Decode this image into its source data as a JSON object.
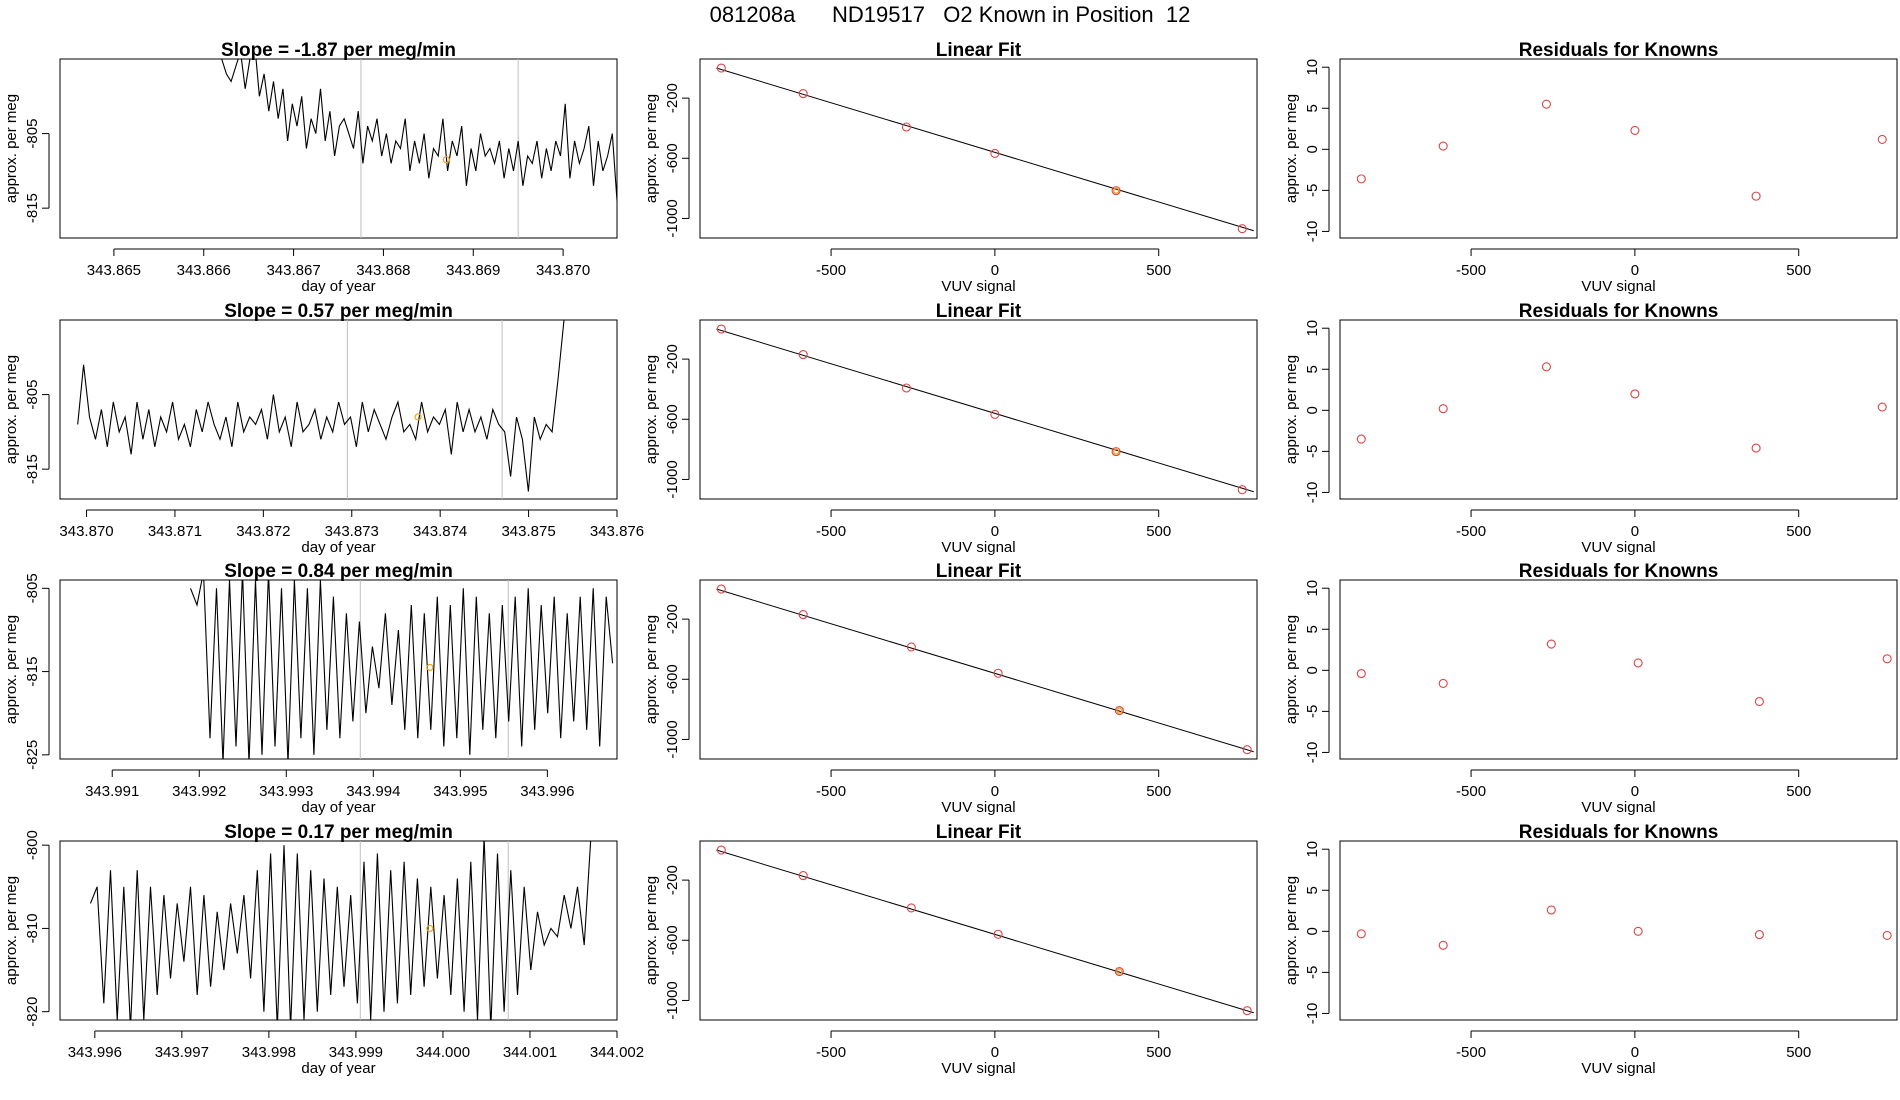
{
  "page_title": "081208a      ND19517   O2 Known in Position  12",
  "colors": {
    "trace": "#000000",
    "known_marker": "#f0a020",
    "fit_marker": "#dd4444",
    "grid_line": "#bfbfbf"
  },
  "chart_data": [
    {
      "type": "line",
      "title": "Slope =  -1.87  per meg/min",
      "xlabel": "day of year",
      "ylabel": "approx. per meg",
      "xlim": [
        343.8644,
        343.8706
      ],
      "ylim": [
        -819,
        -795
      ],
      "xticks": [
        "343.865",
        "343.866",
        "343.867",
        "343.868",
        "343.869",
        "343.870"
      ],
      "yticks": [
        "-805",
        "-815"
      ],
      "vlines": [
        343.86775,
        343.8695
      ],
      "marker": {
        "x": 343.8687,
        "y": -808.5
      },
      "series": [
        {
          "name": "trace",
          "x_start": 343.8662,
          "x_end": 343.8706,
          "values": [
            -795,
            -797,
            -798,
            -796,
            -794,
            -799,
            -795,
            -793,
            -800,
            -797,
            -802,
            -798,
            -803,
            -799,
            -806,
            -801,
            -804,
            -800,
            -807,
            -803,
            -805,
            -799,
            -806,
            -802,
            -808,
            -804,
            -803,
            -805,
            -807,
            -802,
            -809,
            -804,
            -806,
            -803,
            -808,
            -805,
            -809,
            -806,
            -807,
            -803,
            -810,
            -806,
            -809,
            -805,
            -811,
            -807,
            -808,
            -803,
            -810,
            -806,
            -808,
            -804,
            -812,
            -807,
            -810,
            -805,
            -808,
            -807,
            -809,
            -806,
            -811,
            -807,
            -810,
            -806,
            -812,
            -808,
            -809,
            -806,
            -811,
            -807,
            -810,
            -806,
            -808,
            -801,
            -811,
            -806,
            -809,
            -807,
            -804,
            -812,
            -806,
            -810,
            -808,
            -805,
            -814
          ]
        }
      ]
    },
    {
      "type": "line",
      "title": "Slope =  0.57  per meg/min",
      "xlabel": "day of year",
      "ylabel": "approx. per meg",
      "xlim": [
        343.8697,
        343.876
      ],
      "ylim": [
        -819,
        -795
      ],
      "xticks": [
        "343.870",
        "343.871",
        "343.872",
        "343.873",
        "343.874",
        "343.875",
        "343.876"
      ],
      "yticks": [
        "-805",
        "-815"
      ],
      "vlines": [
        343.87295,
        343.8747
      ],
      "marker": {
        "x": 343.87375,
        "y": -808
      },
      "series": [
        {
          "name": "trace",
          "x_start": 343.8699,
          "x_end": 343.8754,
          "values": [
            -809,
            -801,
            -808,
            -811,
            -807,
            -812,
            -806,
            -810,
            -808,
            -813,
            -806,
            -811,
            -807,
            -812,
            -808,
            -810,
            -806,
            -811,
            -809,
            -812,
            -807,
            -810,
            -806,
            -809,
            -811,
            -808,
            -812,
            -806,
            -810,
            -808,
            -809,
            -807,
            -811,
            -805,
            -810,
            -808,
            -812,
            -806,
            -810,
            -809,
            -807,
            -811,
            -808,
            -810,
            -806,
            -809,
            -808,
            -812,
            -806,
            -810,
            -807,
            -809,
            -811,
            -808,
            -806,
            -810,
            -809,
            -811,
            -806,
            -810,
            -808,
            -809,
            -807,
            -813,
            -806,
            -810,
            -807,
            -810,
            -808,
            -811,
            -807,
            -809,
            -810,
            -816,
            -808,
            -811,
            -818,
            -808,
            -811,
            -809,
            -810,
            -803,
            -795
          ]
        }
      ]
    },
    {
      "type": "line",
      "title": "Slope =  0.84  per meg/min",
      "xlabel": "day of year",
      "ylabel": "approx. per meg",
      "xlim": [
        343.9904,
        343.9968
      ],
      "ylim": [
        -825.5,
        -804
      ],
      "xticks": [
        "343.991",
        "343.992",
        "343.993",
        "343.994",
        "343.995",
        "343.996"
      ],
      "yticks": [
        "-805",
        "-815",
        "-825"
      ],
      "vlines": [
        343.99385,
        343.99555
      ],
      "marker": {
        "x": 343.99465,
        "y": -814.5
      },
      "series": [
        {
          "name": "trace",
          "x_start": 343.9919,
          "x_end": 343.99675,
          "values": [
            -805,
            -807,
            -803,
            -823,
            -805,
            -826,
            -804,
            -824,
            -803,
            -826,
            -804,
            -825,
            -803,
            -824,
            -805,
            -826,
            -804,
            -823,
            -805,
            -825,
            -804,
            -822,
            -806,
            -823,
            -808,
            -821,
            -809,
            -820,
            -812,
            -817,
            -808,
            -819,
            -810,
            -822,
            -807,
            -823,
            -808,
            -822,
            -806,
            -824,
            -807,
            -823,
            -805,
            -825,
            -806,
            -822,
            -808,
            -823,
            -807,
            -821,
            -806,
            -824,
            -805,
            -822,
            -807,
            -820,
            -806,
            -823,
            -808,
            -821,
            -806,
            -822,
            -805,
            -824,
            -806,
            -814
          ]
        }
      ]
    },
    {
      "type": "line",
      "title": "Slope =  0.17  per meg/min",
      "xlabel": "day of year",
      "ylabel": "approx. per meg",
      "xlim": [
        343.9956,
        344.002
      ],
      "ylim": [
        -821,
        -799.5
      ],
      "xticks": [
        "343.996",
        "343.997",
        "343.998",
        "343.999",
        "344.000",
        "344.001",
        "344.002"
      ],
      "yticks": [
        "-800",
        "-810",
        "-820"
      ],
      "vlines": [
        343.99905,
        344.00075
      ],
      "marker": {
        "x": 343.99985,
        "y": -810
      },
      "series": [
        {
          "name": "trace",
          "x_start": 343.99595,
          "x_end": 344.0017,
          "values": [
            -807,
            -805,
            -819,
            -803,
            -821,
            -805,
            -822,
            -803,
            -821,
            -805,
            -818,
            -806,
            -816,
            -807,
            -814,
            -805,
            -818,
            -806,
            -817,
            -808,
            -815,
            -807,
            -813,
            -806,
            -816,
            -803,
            -820,
            -801,
            -822,
            -800,
            -822,
            -801,
            -821,
            -803,
            -820,
            -804,
            -818,
            -805,
            -817,
            -806,
            -819,
            -802,
            -821,
            -801,
            -820,
            -803,
            -819,
            -802,
            -818,
            -804,
            -817,
            -805,
            -816,
            -806,
            -818,
            -804,
            -820,
            -802,
            -821,
            -799,
            -822,
            -801,
            -820,
            -803,
            -818,
            -805,
            -815,
            -808,
            -812,
            -810,
            -811,
            -806,
            -810,
            -805,
            -812,
            -799
          ]
        }
      ]
    },
    {
      "type": "scatter",
      "title": "Linear Fit",
      "xlabel": "VUV signal",
      "ylabel": "approx. per meg",
      "xlim": [
        -900,
        800
      ],
      "ylim": [
        -1130,
        60
      ],
      "xticks": [
        -500,
        0,
        500
      ],
      "yticks": [
        -200,
        -600,
        -1000
      ],
      "fit_line": {
        "x1": -850,
        "y1": 0,
        "x2": 790,
        "y2": -1082
      },
      "x": [
        -835,
        -585,
        -270,
        0,
        370,
        755
      ],
      "y": [
        0,
        -170,
        -392,
        -568,
        -815,
        -1068
      ],
      "known_index": 4
    },
    {
      "type": "scatter",
      "title": "Linear Fit",
      "xlabel": "VUV signal",
      "ylabel": "approx. per meg",
      "xlim": [
        -900,
        800
      ],
      "ylim": [
        -1130,
        60
      ],
      "xticks": [
        -500,
        0,
        500
      ],
      "yticks": [
        -200,
        -600,
        -1000
      ],
      "fit_line": {
        "x1": -850,
        "y1": 0,
        "x2": 790,
        "y2": -1082
      },
      "x": [
        -835,
        -585,
        -270,
        0,
        370,
        755
      ],
      "y": [
        0,
        -170,
        -392,
        -568,
        -815,
        -1068
      ],
      "known_index": 4
    },
    {
      "type": "scatter",
      "title": "Linear Fit",
      "xlabel": "VUV signal",
      "ylabel": "approx. per meg",
      "xlim": [
        -900,
        800
      ],
      "ylim": [
        -1130,
        60
      ],
      "xticks": [
        -500,
        0,
        500
      ],
      "yticks": [
        -200,
        -600,
        -1000
      ],
      "fit_line": {
        "x1": -850,
        "y1": 0,
        "x2": 790,
        "y2": -1082
      },
      "x": [
        -835,
        -585,
        -255,
        10,
        380,
        770
      ],
      "y": [
        0,
        -170,
        -385,
        -560,
        -808,
        -1068
      ],
      "known_index": 4
    },
    {
      "type": "scatter",
      "title": "Linear Fit",
      "xlabel": "VUV signal",
      "ylabel": "approx. per meg",
      "xlim": [
        -900,
        800
      ],
      "ylim": [
        -1130,
        60
      ],
      "xticks": [
        -500,
        0,
        500
      ],
      "yticks": [
        -200,
        -600,
        -1000
      ],
      "fit_line": {
        "x1": -850,
        "y1": 0,
        "x2": 790,
        "y2": -1082
      },
      "x": [
        -835,
        -585,
        -255,
        10,
        380,
        770
      ],
      "y": [
        0,
        -170,
        -385,
        -560,
        -808,
        -1068
      ],
      "known_index": 4
    },
    {
      "type": "scatter",
      "title": "Residuals for Knowns",
      "xlabel": "VUV signal",
      "ylabel": "approx. per meg",
      "xlim": [
        -900,
        800
      ],
      "ylim": [
        -10.8,
        11
      ],
      "xticks": [
        -500,
        0,
        500
      ],
      "yticks": [
        10,
        5,
        0,
        -5,
        -10
      ],
      "x": [
        -835,
        -585,
        -270,
        0,
        370,
        755
      ],
      "y": [
        -3.6,
        0.4,
        5.5,
        2.3,
        -5.7,
        1.2
      ]
    },
    {
      "type": "scatter",
      "title": "Residuals for Knowns",
      "xlabel": "VUV signal",
      "ylabel": "approx. per meg",
      "xlim": [
        -900,
        800
      ],
      "ylim": [
        -10.8,
        11
      ],
      "xticks": [
        -500,
        0,
        500
      ],
      "yticks": [
        10,
        5,
        0,
        -5,
        -10
      ],
      "x": [
        -835,
        -585,
        -270,
        0,
        370,
        755
      ],
      "y": [
        -3.5,
        0.2,
        5.3,
        2.0,
        -4.6,
        0.4
      ]
    },
    {
      "type": "scatter",
      "title": "Residuals for Knowns",
      "xlabel": "VUV signal",
      "ylabel": "approx. per meg",
      "xlim": [
        -900,
        800
      ],
      "ylim": [
        -10.8,
        11
      ],
      "xticks": [
        -500,
        0,
        500
      ],
      "yticks": [
        10,
        5,
        0,
        -5,
        -10
      ],
      "x": [
        -835,
        -585,
        -255,
        10,
        380,
        770
      ],
      "y": [
        -0.4,
        -1.6,
        3.2,
        0.9,
        -3.8,
        1.4
      ]
    },
    {
      "type": "scatter",
      "title": "Residuals for Knowns",
      "xlabel": "VUV signal",
      "ylabel": "approx. per meg",
      "xlim": [
        -900,
        800
      ],
      "ylim": [
        -10.8,
        11
      ],
      "xticks": [
        -500,
        0,
        500
      ],
      "yticks": [
        10,
        5,
        0,
        -5,
        -10
      ],
      "x": [
        -835,
        -585,
        -255,
        10,
        380,
        770
      ],
      "y": [
        -0.3,
        -1.7,
        2.6,
        0.0,
        -0.4,
        -0.5
      ]
    }
  ]
}
